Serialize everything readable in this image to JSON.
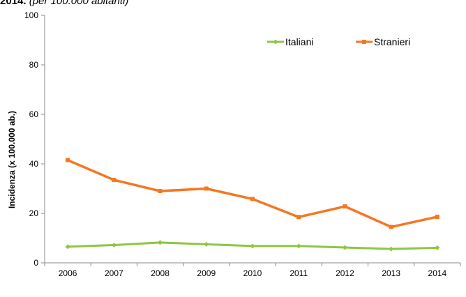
{
  "caption": {
    "bold": "2014.",
    "italic": "(per 100.000 abitanti)"
  },
  "chart_data": {
    "type": "line",
    "ylabel": "Incidenza (x 100.000 ab.)",
    "xlabel": "",
    "ylim": [
      0,
      100
    ],
    "yticks": [
      "0",
      "20",
      "40",
      "60",
      "80",
      "100"
    ],
    "categories": [
      "2006",
      "2007",
      "2008",
      "2009",
      "2010",
      "2011",
      "2012",
      "2013",
      "2014"
    ],
    "series": [
      {
        "name": "Italiani",
        "color": "#8dc641",
        "marker": "diamond",
        "values": [
          6.5,
          7.2,
          8.2,
          7.5,
          6.8,
          6.8,
          6.2,
          5.6,
          6.1
        ]
      },
      {
        "name": "Stranieri",
        "color": "#f47721",
        "marker": "square",
        "values": [
          41.5,
          33.5,
          29.0,
          30.0,
          25.8,
          18.5,
          22.8,
          14.5,
          18.6
        ]
      }
    ],
    "legend": "top-right",
    "grid": false
  }
}
